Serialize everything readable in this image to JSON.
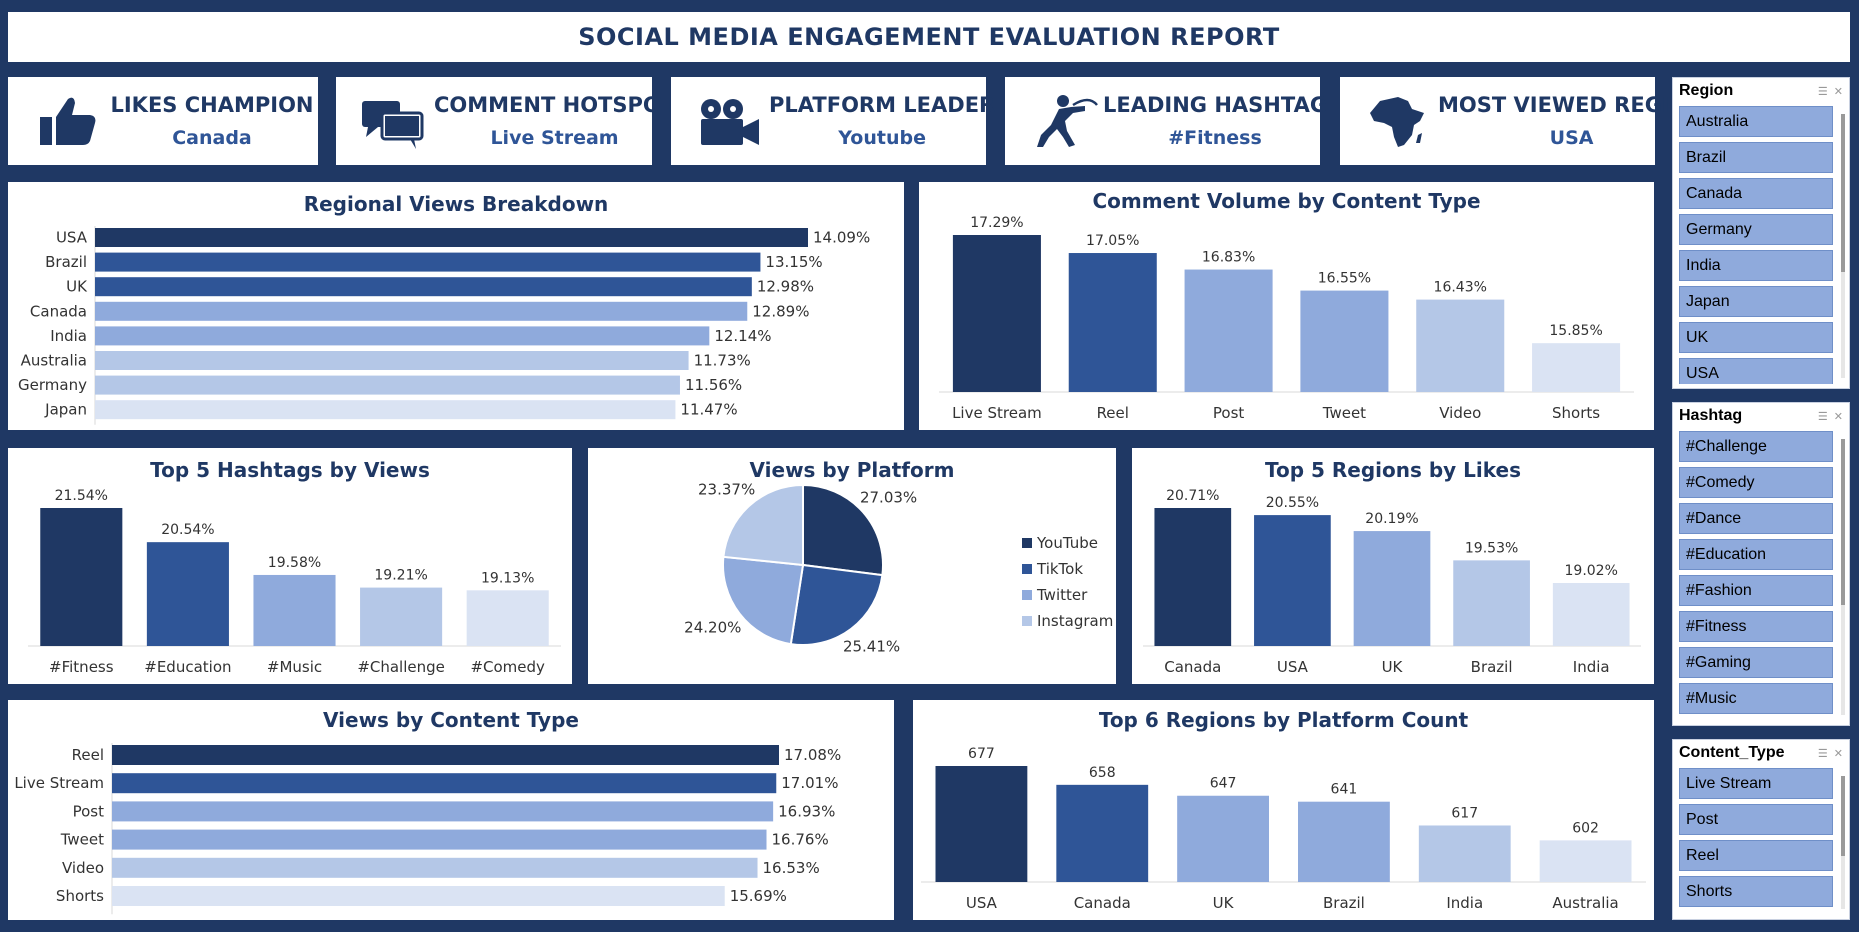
{
  "report": {
    "title": "SOCIAL MEDIA ENGAGEMENT EVALUATION REPORT"
  },
  "kpis": [
    {
      "title": "LIKES CHAMPION",
      "value": "Canada",
      "icon": "thumbs-up-icon"
    },
    {
      "title": "COMMENT HOTSPOT",
      "value": "Live Stream",
      "icon": "chat-bubbles-icon"
    },
    {
      "title": "PLATFORM LEADER",
      "value": "Youtube",
      "icon": "video-camera-icon"
    },
    {
      "title": "LEADING HASHTAG",
      "value": "#Fitness",
      "icon": "runner-icon"
    },
    {
      "title": "MOST VIEWED REGION",
      "value": "USA",
      "icon": "africa-map-icon"
    }
  ],
  "colors": {
    "navy": "#1f3864",
    "dark_blue": "#2f5597",
    "mid_blue": "#8faadc",
    "light_blue": "#b4c7e7",
    "pale_blue": "#dae3f3"
  },
  "chart_data": [
    {
      "id": "regional_views",
      "type": "bar",
      "orientation": "horizontal",
      "title": "Regional Views Breakdown",
      "categories": [
        "USA",
        "Brazil",
        "UK",
        "Canada",
        "India",
        "Australia",
        "Germany",
        "Japan"
      ],
      "values": [
        14.09,
        13.15,
        12.98,
        12.89,
        12.14,
        11.73,
        11.56,
        11.47
      ],
      "labels": [
        "14.09%",
        "13.15%",
        "12.98%",
        "12.89%",
        "12.14%",
        "11.73%",
        "11.56%",
        "11.47%"
      ],
      "colors": [
        "#1f3864",
        "#2f5597",
        "#2f5597",
        "#8faadc",
        "#8faadc",
        "#b4c7e7",
        "#b4c7e7",
        "#dae3f3"
      ]
    },
    {
      "id": "comment_volume",
      "type": "bar",
      "orientation": "vertical",
      "title": "Comment Volume by Content Type",
      "categories": [
        "Live Stream",
        "Reel",
        "Post",
        "Tweet",
        "Video",
        "Shorts"
      ],
      "values": [
        17.29,
        17.05,
        16.83,
        16.55,
        16.43,
        15.85
      ],
      "labels": [
        "17.29%",
        "17.05%",
        "16.83%",
        "16.55%",
        "16.43%",
        "15.85%"
      ],
      "colors": [
        "#1f3864",
        "#2f5597",
        "#8faadc",
        "#8faadc",
        "#b4c7e7",
        "#dae3f3"
      ]
    },
    {
      "id": "top_hashtags",
      "type": "bar",
      "orientation": "vertical",
      "title": "Top 5 Hashtags by Views",
      "categories": [
        "#Fitness",
        "#Education",
        "#Music",
        "#Challenge",
        "#Comedy"
      ],
      "values": [
        21.54,
        20.54,
        19.58,
        19.21,
        19.13
      ],
      "labels": [
        "21.54%",
        "20.54%",
        "19.58%",
        "19.21%",
        "19.13%"
      ],
      "colors": [
        "#1f3864",
        "#2f5597",
        "#8faadc",
        "#b4c7e7",
        "#dae3f3"
      ]
    },
    {
      "id": "views_platform",
      "type": "pie",
      "title": "Views by Platform",
      "categories": [
        "YouTube",
        "TikTok",
        "Twitter",
        "Instagram"
      ],
      "values": [
        27.03,
        25.41,
        24.2,
        23.37
      ],
      "labels": [
        "27.03%",
        "25.41%",
        "24.20%",
        "23.37%"
      ],
      "colors": [
        "#1f3864",
        "#2f5597",
        "#8faadc",
        "#b4c7e7"
      ],
      "legend": "right"
    },
    {
      "id": "top_regions_likes",
      "type": "bar",
      "orientation": "vertical",
      "title": "Top 5 Regions by Likes",
      "categories": [
        "Canada",
        "USA",
        "UK",
        "Brazil",
        "India"
      ],
      "values": [
        20.71,
        20.55,
        20.19,
        19.53,
        19.02
      ],
      "labels": [
        "20.71%",
        "20.55%",
        "20.19%",
        "19.53%",
        "19.02%"
      ],
      "colors": [
        "#1f3864",
        "#2f5597",
        "#8faadc",
        "#b4c7e7",
        "#dae3f3"
      ]
    },
    {
      "id": "views_content",
      "type": "bar",
      "orientation": "horizontal",
      "title": "Views by Content Type",
      "categories": [
        "Reel",
        "Live Stream",
        "Post",
        "Tweet",
        "Video",
        "Shorts"
      ],
      "values": [
        17.08,
        17.01,
        16.93,
        16.76,
        16.53,
        15.69
      ],
      "labels": [
        "17.08%",
        "17.01%",
        "16.93%",
        "16.76%",
        "16.53%",
        "15.69%"
      ],
      "colors": [
        "#1f3864",
        "#2f5597",
        "#8faadc",
        "#8faadc",
        "#b4c7e7",
        "#dae3f3"
      ]
    },
    {
      "id": "platform_count",
      "type": "bar",
      "orientation": "vertical",
      "title": "Top 6 Regions by Platform Count",
      "categories": [
        "USA",
        "Canada",
        "UK",
        "Brazil",
        "India",
        "Australia"
      ],
      "values": [
        677,
        658,
        647,
        641,
        617,
        602
      ],
      "labels": [
        "677",
        "658",
        "647",
        "641",
        "617",
        "602"
      ],
      "colors": [
        "#1f3864",
        "#2f5597",
        "#8faadc",
        "#8faadc",
        "#b4c7e7",
        "#dae3f3"
      ]
    }
  ],
  "slicers": [
    {
      "title": "Region",
      "items": [
        "Australia",
        "Brazil",
        "Canada",
        "Germany",
        "India",
        "Japan",
        "UK",
        "USA"
      ]
    },
    {
      "title": "Hashtag",
      "items": [
        "#Challenge",
        "#Comedy",
        "#Dance",
        "#Education",
        "#Fashion",
        "#Fitness",
        "#Gaming",
        "#Music"
      ]
    },
    {
      "title": "Content_Type",
      "items": [
        "Live Stream",
        "Post",
        "Reel",
        "Shorts"
      ]
    }
  ]
}
